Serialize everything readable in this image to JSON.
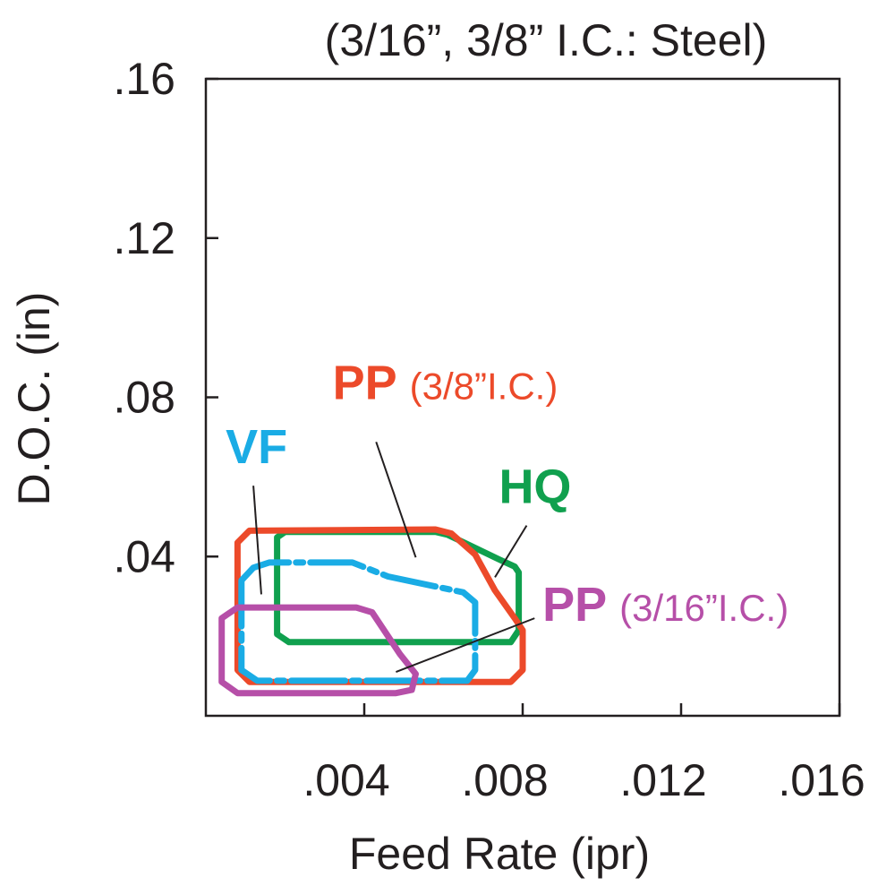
{
  "chart_data": {
    "type": "area",
    "title": "(3/16”, 3/8” I.C.: Steel)",
    "xlabel": "Feed Rate (ipr)",
    "ylabel": "D.O.C. (in)",
    "xlim": [
      0,
      0.016
    ],
    "ylim": [
      0,
      0.16
    ],
    "x_ticks": [
      0.004,
      0.008,
      0.012,
      0.016
    ],
    "x_tick_labels": [
      ".004",
      ".008",
      ".012",
      ".016"
    ],
    "y_ticks": [
      0.04,
      0.08,
      0.12,
      0.16
    ],
    "y_tick_labels": [
      ".04",
      ".08",
      ".12",
      ".16"
    ],
    "grid": false,
    "series": [
      {
        "name": "HQ",
        "color": "#10a04e",
        "dashed": false,
        "points": [
          [
            0.0018,
            0.0448
          ],
          [
            0.002,
            0.0462
          ],
          [
            0.0058,
            0.0462
          ],
          [
            0.0061,
            0.0455
          ],
          [
            0.0074,
            0.0393
          ],
          [
            0.0078,
            0.0375
          ],
          [
            0.0079,
            0.036
          ],
          [
            0.0079,
            0.0215
          ],
          [
            0.0077,
            0.0185
          ],
          [
            0.0021,
            0.0185
          ],
          [
            0.0018,
            0.0205
          ]
        ]
      },
      {
        "name": "PP",
        "name_suffix": "(3/8”I.C.)",
        "color": "#ec4a2a",
        "dashed": false,
        "points": [
          [
            0.0008,
            0.0435
          ],
          [
            0.0011,
            0.0465
          ],
          [
            0.0058,
            0.0468
          ],
          [
            0.0062,
            0.0458
          ],
          [
            0.0068,
            0.0405
          ],
          [
            0.0073,
            0.0315
          ],
          [
            0.0078,
            0.0245
          ],
          [
            0.008,
            0.0215
          ],
          [
            0.008,
            0.0115
          ],
          [
            0.0077,
            0.0085
          ],
          [
            0.0011,
            0.0085
          ],
          [
            0.0008,
            0.0115
          ]
        ]
      },
      {
        "name": "VF",
        "color": "#1aace5",
        "dashed": true,
        "points": [
          [
            0.0009,
            0.034
          ],
          [
            0.0012,
            0.0372
          ],
          [
            0.0016,
            0.0385
          ],
          [
            0.0037,
            0.0385
          ],
          [
            0.0046,
            0.035
          ],
          [
            0.0065,
            0.031
          ],
          [
            0.0068,
            0.0285
          ],
          [
            0.0068,
            0.0115
          ],
          [
            0.0066,
            0.0088
          ],
          [
            0.0013,
            0.0088
          ],
          [
            0.0009,
            0.0115
          ]
        ]
      },
      {
        "name": "PP",
        "name_suffix": "(3/16”I.C.)",
        "color": "#b64fa8",
        "dashed": false,
        "points": [
          [
            0.0004,
            0.0245
          ],
          [
            0.0008,
            0.0272
          ],
          [
            0.0038,
            0.0272
          ],
          [
            0.0042,
            0.026
          ],
          [
            0.0049,
            0.0155
          ],
          [
            0.0053,
            0.0105
          ],
          [
            0.0052,
            0.0065
          ],
          [
            0.0048,
            0.0057
          ],
          [
            0.0008,
            0.0057
          ],
          [
            0.0004,
            0.0085
          ]
        ]
      }
    ],
    "annotations": [
      {
        "series": 0,
        "text": "HQ",
        "at": [
          0.0074,
          0.0535
        ],
        "pointer": [
          [
            0.0081,
            0.0478
          ],
          [
            0.0073,
            0.0348
          ]
        ]
      },
      {
        "series": 1,
        "text": "PP",
        "suffix": "(3/8”I.C.)",
        "at": [
          0.0032,
          0.0795
        ],
        "pointer": [
          [
            0.0043,
            0.0688
          ],
          [
            0.0053,
            0.0398
          ]
        ]
      },
      {
        "series": 2,
        "text": "VF",
        "at": [
          0.0005,
          0.0635
        ],
        "pointer": [
          [
            0.0012,
            0.0578
          ],
          [
            0.0014,
            0.0305
          ]
        ]
      },
      {
        "series": 3,
        "text": "PP",
        "suffix": "(3/16”I.C.)",
        "at": [
          0.0085,
          0.0238
        ],
        "pointer": [
          [
            0.0083,
            0.0245
          ],
          [
            0.0048,
            0.011
          ]
        ]
      }
    ]
  }
}
